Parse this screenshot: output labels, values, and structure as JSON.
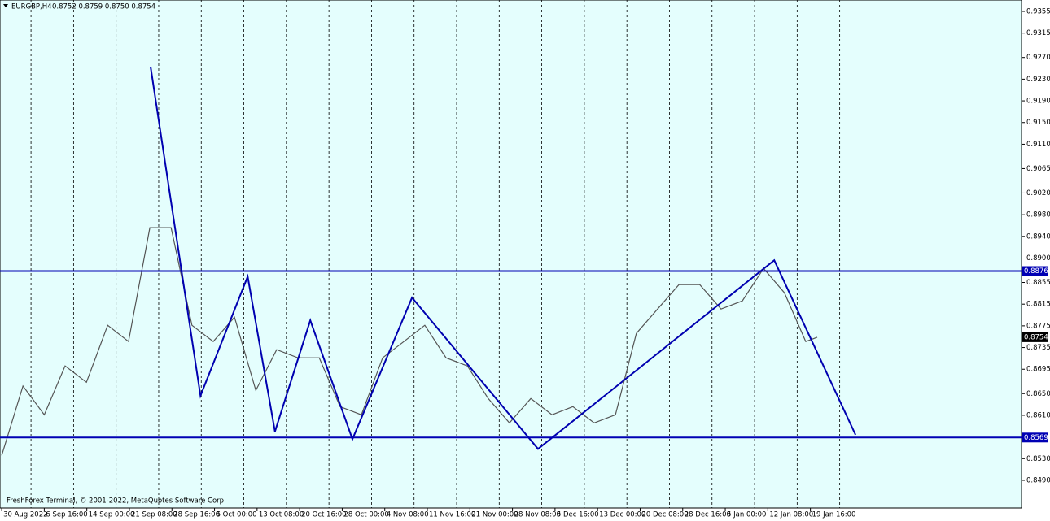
{
  "chart_data": {
    "type": "line",
    "title": "EURGBP,H4",
    "header_values": "0.8752 0.8759 0.8750 0.8754",
    "footer": "FreshForex Terminal, © 2001-2022, MetaQuotes Software Corp.",
    "background": "#e4fefd",
    "xlim": [
      -0.04,
      23.96
    ],
    "ylim": [
      0.8439,
      0.9376
    ],
    "xticks": [
      {
        "value": 0,
        "label": "30 Aug 2022"
      },
      {
        "value": 1,
        "label": "6 Sep 16:00"
      },
      {
        "value": 2,
        "label": "14 Sep 00:00"
      },
      {
        "value": 3,
        "label": "21 Sep 08:00"
      },
      {
        "value": 4,
        "label": "28 Sep 16:00"
      },
      {
        "value": 5,
        "label": "6 Oct 00:00"
      },
      {
        "value": 6,
        "label": "13 Oct 08:00"
      },
      {
        "value": 7,
        "label": "20 Oct 16:00"
      },
      {
        "value": 8,
        "label": "28 Oct 00:00"
      },
      {
        "value": 9,
        "label": "4 Nov 08:00"
      },
      {
        "value": 10,
        "label": "11 Nov 16:00"
      },
      {
        "value": 11,
        "label": "21 Nov 00:00"
      },
      {
        "value": 12,
        "label": "28 Nov 08:00"
      },
      {
        "value": 13,
        "label": "5 Dec 16:00"
      },
      {
        "value": 14,
        "label": "13 Dec 00:00"
      },
      {
        "value": 15,
        "label": "20 Dec 08:00"
      },
      {
        "value": 16,
        "label": "28 Dec 16:00"
      },
      {
        "value": 17,
        "label": "5 Jan 00:00"
      },
      {
        "value": 18,
        "label": "12 Jan 08:00"
      },
      {
        "value": 19,
        "label": "19 Jan 16:00"
      }
    ],
    "yticks": [
      0.9355,
      0.9315,
      {
        "value": 0.927,
        "label": "0.9270"
      },
      {
        "value": 0.923,
        "label": "0.9230"
      },
      {
        "value": 0.919,
        "label": "0.9190"
      },
      {
        "value": 0.915,
        "label": "0.9150"
      },
      {
        "value": 0.911,
        "label": "0.9110"
      },
      0.9065,
      {
        "value": 0.902,
        "label": "0.9020"
      },
      {
        "value": 0.898,
        "label": "0.8980"
      },
      {
        "value": 0.894,
        "label": "0.8940"
      },
      {
        "value": 0.89,
        "label": "0.8900"
      },
      0.8855,
      0.8815,
      0.8775,
      0.8735,
      0.8695,
      {
        "value": 0.865,
        "label": "0.8650"
      },
      {
        "value": 0.861,
        "label": "0.8610"
      },
      {
        "value": 0.853,
        "label": "0.8530"
      },
      {
        "value": 0.849,
        "label": "0.8490"
      }
    ],
    "levels": [
      0.8876,
      0.8569
    ],
    "level_color": "#0000b4",
    "last_price": 0.8754,
    "series": [
      {
        "color": "#555555",
        "x": [
          0,
          0.5,
          1.0,
          1.49,
          1.99,
          2.49,
          2.98,
          3.48,
          3.98,
          4.47,
          4.97,
          5.47,
          5.97,
          6.46,
          6.96,
          7.46,
          7.95,
          8.45,
          8.95,
          9.45,
          9.94,
          10.44,
          10.94,
          11.43,
          11.93,
          12.43,
          12.93,
          13.42,
          13.92,
          14.42,
          14.91,
          15.41,
          15.91,
          16.4,
          16.9,
          17.4,
          17.9,
          18.39,
          18.89,
          19.16
        ],
        "values": [
          0.8536,
          0.8664,
          0.8611,
          0.8701,
          0.8671,
          0.8776,
          0.8746,
          0.8956,
          0.8956,
          0.8776,
          0.8746,
          0.8791,
          0.8656,
          0.8731,
          0.8716,
          0.8716,
          0.8626,
          0.8611,
          0.8716,
          0.8746,
          0.8776,
          0.8716,
          0.8701,
          0.8641,
          0.8596,
          0.8641,
          0.8611,
          0.8626,
          0.8596,
          0.8611,
          0.8761,
          0.8806,
          0.8851,
          0.8851,
          0.8806,
          0.8821,
          0.8881,
          0.8836,
          0.8746,
          0.8754
        ]
      },
      {
        "color": "#0000b0",
        "x": [
          3.5,
          4.67,
          5.78,
          6.42,
          7.25,
          8.24,
          9.64,
          12.6,
          18.15,
          20.06
        ],
        "values": [
          0.9252,
          0.8646,
          0.8866,
          0.858,
          0.8785,
          0.8566,
          0.8827,
          0.8548,
          0.8896,
          0.8574
        ]
      }
    ]
  }
}
